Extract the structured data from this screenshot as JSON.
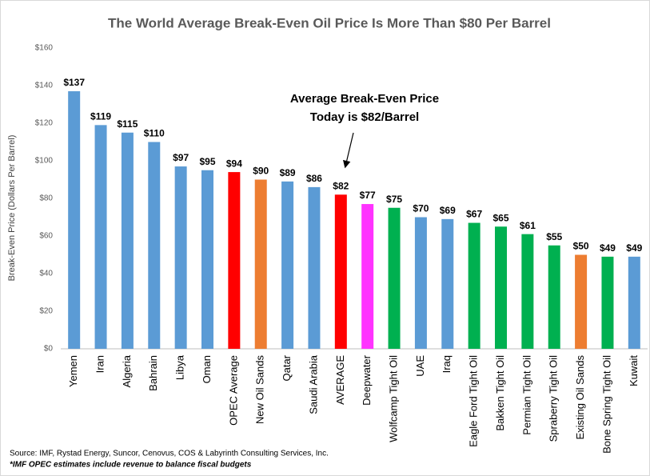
{
  "chart_data": {
    "type": "bar",
    "title": "The World Average Break-Even Oil Price Is More Than $80 Per Barrel",
    "y_label": "Break-Even Price (Dollars Per Barrel)",
    "categories": [
      "Yemen",
      "Iran",
      "Algeria",
      "Bahrain",
      "Libya",
      "Oman",
      "OPEC Average",
      "New Oil Sands",
      "Qatar",
      "Saudi Arabia",
      "AVERAGE",
      "Deepwater",
      "Wolfcamp Tight Oil",
      "UAE",
      "Iraq",
      "Eagle Ford Tight Oil",
      "Bakken Tight Oil",
      "Permian Tight Oil",
      "Spraberry Tight Oil",
      "Existing Oil Sands",
      "Bone Spring Tight Oil",
      "Kuwait"
    ],
    "values": [
      137,
      119,
      115,
      110,
      97,
      95,
      94,
      90,
      89,
      86,
      82,
      77,
      75,
      70,
      69,
      67,
      65,
      61,
      55,
      50,
      49,
      49
    ],
    "value_labels": [
      "$137",
      "$119",
      "$115",
      "$110",
      "$97",
      "$95",
      "$94",
      "$90",
      "$89",
      "$86",
      "$82",
      "$77",
      "$75",
      "$70",
      "$69",
      "$67",
      "$65",
      "$61",
      "$55",
      "$50",
      "$49",
      "$49"
    ],
    "colors": [
      "#5b9bd5",
      "#5b9bd5",
      "#5b9bd5",
      "#5b9bd5",
      "#5b9bd5",
      "#5b9bd5",
      "#ff0000",
      "#ed7d31",
      "#5b9bd5",
      "#5b9bd5",
      "#ff0000",
      "#ff33ff",
      "#00b050",
      "#5b9bd5",
      "#5b9bd5",
      "#00b050",
      "#00b050",
      "#00b050",
      "#00b050",
      "#ed7d31",
      "#00b050",
      "#5b9bd5"
    ],
    "ylim": [
      0,
      160
    ],
    "yticks": [
      {
        "value": 0,
        "label": "$0"
      },
      {
        "value": 20,
        "label": "$20"
      },
      {
        "value": 40,
        "label": "$40"
      },
      {
        "value": 60,
        "label": "$60"
      },
      {
        "value": 80,
        "label": "$80"
      },
      {
        "value": 100,
        "label": "$100"
      },
      {
        "value": 120,
        "label": "$120"
      },
      {
        "value": 140,
        "label": "$140"
      },
      {
        "value": 160,
        "label": "$160"
      }
    ],
    "grid": false,
    "annotation": [
      "Average Break-Even Price",
      "Today is $82/Barrel"
    ],
    "source": "Source:  IMF, Rystad Energy, Suncor, Cenovus, COS & Labyrinth  Consulting  Services, Inc.",
    "note": "*IMF OPEC estimates include  revenue to balance  fiscal budgets"
  }
}
